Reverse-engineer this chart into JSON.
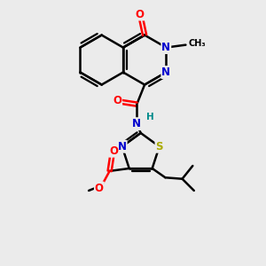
{
  "bg_color": "#ebebeb",
  "bond_color": "#000000",
  "bond_width": 1.8,
  "atom_colors": {
    "O": "#ff0000",
    "N": "#0000cd",
    "S": "#aaaa00",
    "H": "#008b8b",
    "C": "#000000"
  },
  "font_size": 8.5
}
